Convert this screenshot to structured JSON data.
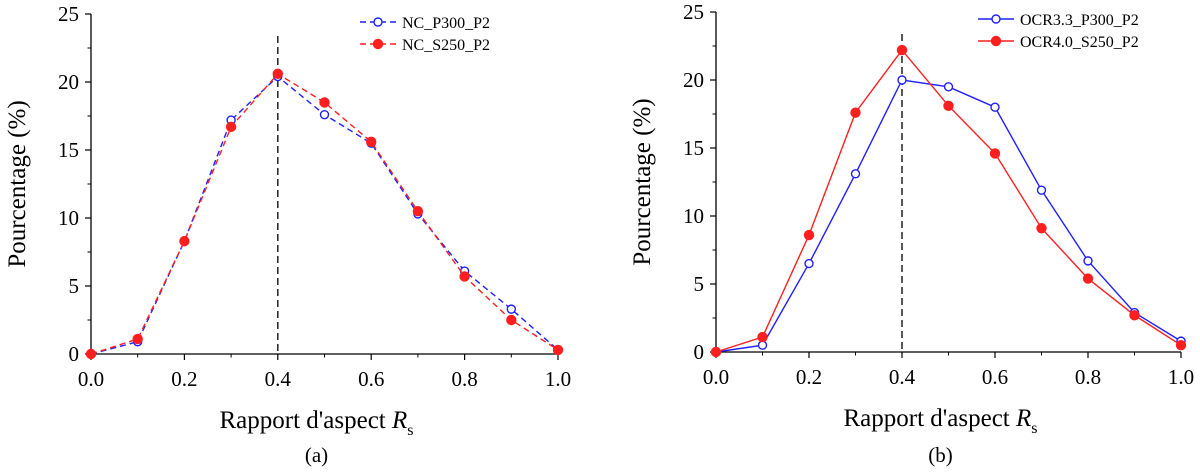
{
  "chart_data": [
    {
      "type": "line",
      "panel_label": "(a)",
      "xlabel": "Rapport d'aspect",
      "xlabel_symbol": "R",
      "xlabel_subscript": "s",
      "ylabel": "Pourcentage (%)",
      "xlim": [
        0,
        1.0
      ],
      "ylim": [
        0,
        25
      ],
      "xticks": [
        "0.0",
        "0.2",
        "0.4",
        "0.6",
        "0.8",
        "1.0"
      ],
      "yticks": [
        "0",
        "5",
        "10",
        "15",
        "20",
        "25"
      ],
      "vertical_reference_line_x": 0.4,
      "legend_position": "top-right",
      "x": [
        0.0,
        0.1,
        0.2,
        0.3,
        0.4,
        0.5,
        0.6,
        0.7,
        0.8,
        0.9,
        1.0
      ],
      "series": [
        {
          "name": "NC_P300_P2",
          "color": "#1f1fff",
          "line_style": "dashed",
          "marker": "open-circle",
          "values": [
            0.0,
            0.9,
            8.3,
            17.2,
            20.4,
            17.6,
            15.5,
            10.3,
            6.1,
            3.3,
            0.3
          ]
        },
        {
          "name": "NC_S250_P2",
          "color": "#ff1f1f",
          "line_style": "dashed",
          "marker": "filled-circle",
          "values": [
            0.0,
            1.1,
            8.3,
            16.7,
            20.6,
            18.5,
            15.6,
            10.5,
            5.7,
            2.5,
            0.3
          ]
        }
      ]
    },
    {
      "type": "line",
      "panel_label": "(b)",
      "xlabel": "Rapport d'aspect",
      "xlabel_symbol": "R",
      "xlabel_subscript": "s",
      "ylabel": "Pourcentage (%)",
      "xlim": [
        0,
        1.0
      ],
      "ylim": [
        0,
        25
      ],
      "xticks": [
        "0.0",
        "0.2",
        "0.4",
        "0.6",
        "0.8",
        "1.0"
      ],
      "yticks": [
        "0",
        "5",
        "10",
        "15",
        "20",
        "25"
      ],
      "vertical_reference_line_x": 0.4,
      "legend_position": "top-right",
      "x": [
        0.0,
        0.1,
        0.2,
        0.3,
        0.4,
        0.5,
        0.6,
        0.7,
        0.8,
        0.9,
        1.0
      ],
      "series": [
        {
          "name": "OCR3.3_P300_P2",
          "color": "#1f1fff",
          "line_style": "solid",
          "marker": "open-circle",
          "values": [
            0.0,
            0.5,
            6.5,
            13.1,
            20.0,
            19.5,
            18.0,
            11.9,
            6.7,
            2.9,
            0.8
          ]
        },
        {
          "name": "OCR4.0_S250_P2",
          "color": "#ff1f1f",
          "line_style": "solid",
          "marker": "filled-circle",
          "values": [
            0.0,
            1.1,
            8.6,
            17.6,
            22.2,
            18.1,
            14.6,
            9.1,
            5.4,
            2.7,
            0.5
          ]
        }
      ]
    }
  ]
}
